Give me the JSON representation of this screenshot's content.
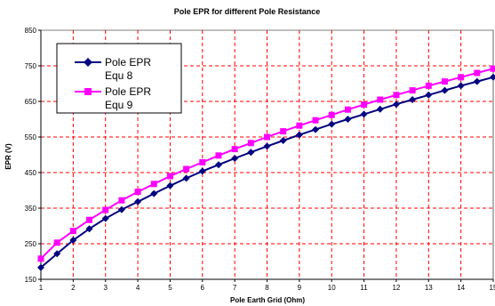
{
  "chart_data": {
    "type": "line",
    "title": "Pole EPR for different Pole Resistance",
    "xlabel": "Pole Earth Grid (Ohm)",
    "ylabel": "EPR (V)",
    "xlim": [
      1,
      15
    ],
    "ylim": [
      150,
      850
    ],
    "x_ticks": [
      "1",
      "2",
      "3",
      "4",
      "5",
      "6",
      "7",
      "8",
      "9",
      "10",
      "11",
      "12",
      "13",
      "14",
      "15"
    ],
    "y_ticks": [
      "150",
      "250",
      "350",
      "450",
      "550",
      "650",
      "750",
      "850"
    ],
    "grid": true,
    "grid_style": "dashed",
    "grid_color": "#ff0000",
    "legend_position": "top-left",
    "x": [
      1,
      1.5,
      2,
      2.5,
      3,
      3.5,
      4,
      4.5,
      5,
      5.5,
      6,
      6.5,
      7,
      7.5,
      8,
      8.5,
      9,
      9.5,
      10,
      10.5,
      11,
      11.5,
      12,
      12.5,
      13,
      13.5,
      14,
      14.5,
      15
    ],
    "series": [
      {
        "name": "Pole EPR Equ 8",
        "legend_lines": [
          "Pole EPR",
          "Equ 8"
        ],
        "color": "#000080",
        "marker": "diamond",
        "values": [
          183,
          222,
          260,
          292,
          321,
          346,
          368,
          391,
          413,
          434,
          454,
          472,
          490,
          507,
          524,
          540,
          556,
          571,
          586,
          600,
          614,
          628,
          642,
          655,
          668,
          681,
          694,
          706,
          718
        ]
      },
      {
        "name": "Pole EPR Equ 9",
        "legend_lines": [
          "Pole EPR",
          "Equ 9"
        ],
        "color": "#ff00ff",
        "marker": "square",
        "values": [
          208,
          253,
          286,
          317,
          345,
          372,
          396,
          418,
          440,
          460,
          479,
          498,
          516,
          533,
          550,
          566,
          582,
          597,
          612,
          627,
          641,
          655,
          668,
          681,
          694,
          706,
          718,
          730,
          742
        ]
      }
    ]
  }
}
